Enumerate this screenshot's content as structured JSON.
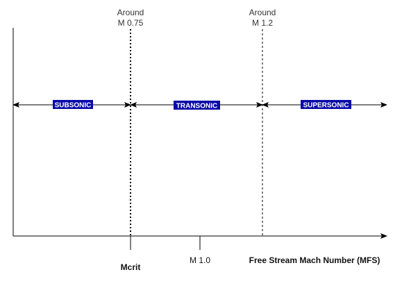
{
  "top_labels": {
    "mcrit": {
      "line1": "Around",
      "line2": "M 0.75"
    },
    "supersonic_boundary": {
      "line1": "Around",
      "line2": "M 1.2"
    }
  },
  "regions": {
    "subsonic": "SUBSONIC",
    "transonic": "TRANSONIC",
    "supersonic": "SUPERSONIC"
  },
  "axis_labels": {
    "mcrit": "Mcrit",
    "mach_one": "M 1.0",
    "x_axis_title": "Free Stream Mach Number (MFS)"
  },
  "colors": {
    "line": "#000000",
    "region_label_bg": "#0A0AA8",
    "region_label_text": "#ffffff"
  }
}
